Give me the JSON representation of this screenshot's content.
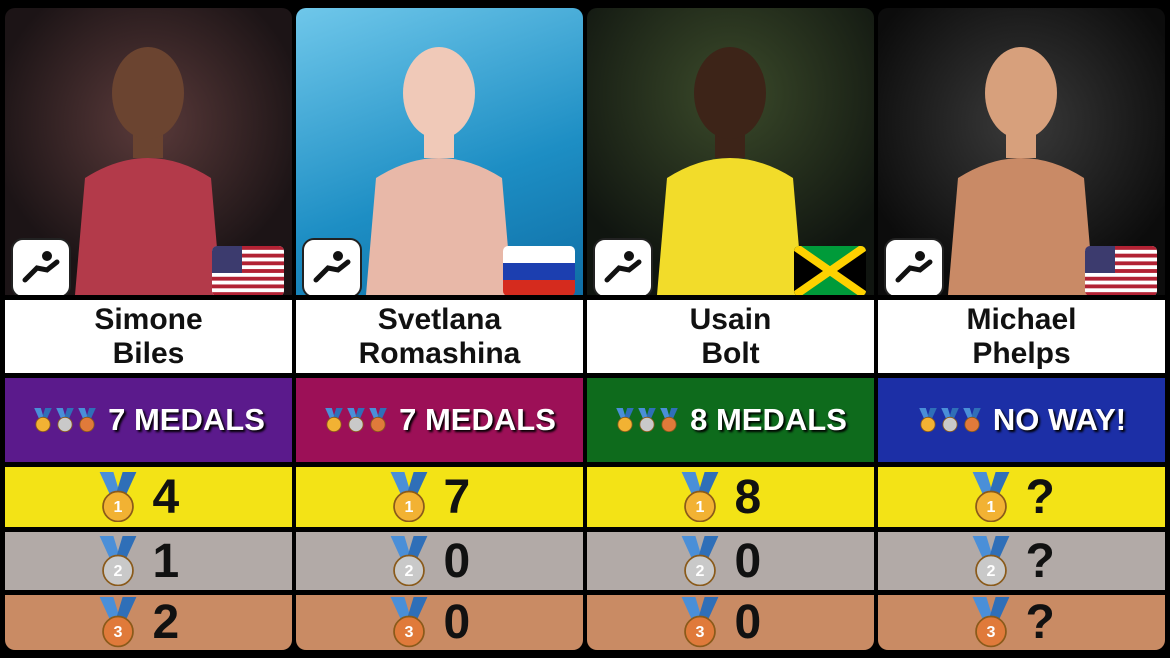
{
  "columns": [
    {
      "name_lines": [
        "Simone",
        "Biles"
      ],
      "medals_text": "7 MEDALS",
      "gold": 4,
      "silver": 1,
      "bronze": 2
    },
    {
      "name_lines": [
        "Svetlana",
        "Romashina"
      ],
      "medals_text": "7 MEDALS",
      "gold": 7,
      "silver": 0,
      "bronze": 0
    },
    {
      "name_lines": [
        "Usain",
        "Bolt"
      ],
      "medals_text": "8 MEDALS",
      "gold": 8,
      "silver": 0,
      "bronze": 0
    },
    {
      "name_lines": [
        "Michael",
        "Phelps"
      ],
      "medals_text": "NO WAY!",
      "gold": "?",
      "silver": "?",
      "bronze": "?"
    }
  ],
  "medal_icon_labels": [
    1,
    2,
    3
  ]
}
